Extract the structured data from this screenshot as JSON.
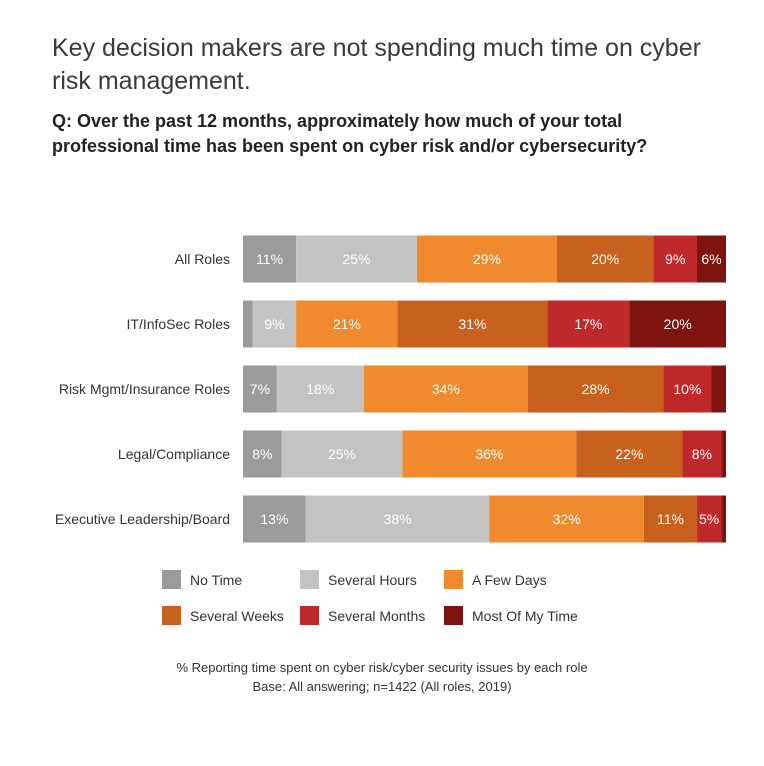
{
  "title": "Key decision makers are not spending much time on cyber risk management.",
  "question": "Q: Over the past 12 months, approximately how much of your total professional time has been spent on cyber risk and/or cybersecurity?",
  "footnote": {
    "line1": "% Reporting time spent on cyber risk/cyber security issues by each role",
    "line2": "Base: All answering; n=1422 (All roles, 2019)"
  },
  "chart_data": {
    "type": "bar",
    "orientation": "horizontal",
    "stacked": true,
    "normalized": true,
    "categories": [
      "All Roles",
      "IT/InfoSec Roles",
      "Risk Mgmt/Insurance Roles",
      "Legal/Compliance",
      "Executive Leadership/Board"
    ],
    "series": [
      {
        "name": "No Time",
        "color": "#9b9b9b",
        "values": [
          11,
          2,
          7,
          8,
          13
        ],
        "labels": [
          "11%",
          "",
          "7%",
          "8%",
          "13%"
        ]
      },
      {
        "name": "Several Hours",
        "color": "#c3c3c3",
        "values": [
          25,
          9,
          18,
          25,
          38
        ],
        "labels": [
          "25%",
          "9%",
          "18%",
          "25%",
          "38%"
        ]
      },
      {
        "name": "A Few Days",
        "color": "#ef8a2f",
        "values": [
          29,
          21,
          34,
          36,
          32
        ],
        "labels": [
          "29%",
          "21%",
          "34%",
          "36%",
          "32%"
        ]
      },
      {
        "name": "Several Weeks",
        "color": "#c8611d",
        "values": [
          20,
          31,
          28,
          22,
          11
        ],
        "labels": [
          "20%",
          "31%",
          "28%",
          "22%",
          "11%"
        ]
      },
      {
        "name": "Several Months",
        "color": "#c0292b",
        "values": [
          9,
          17,
          10,
          8,
          5
        ],
        "labels": [
          "9%",
          "17%",
          "10%",
          "8%",
          "5%"
        ]
      },
      {
        "name": "Most Of My Time",
        "color": "#7d1410",
        "values": [
          6,
          20,
          3,
          1,
          1
        ],
        "labels": [
          "6%",
          "20%",
          "",
          "",
          ""
        ]
      }
    ],
    "legend_position": "bottom",
    "grid": false
  }
}
